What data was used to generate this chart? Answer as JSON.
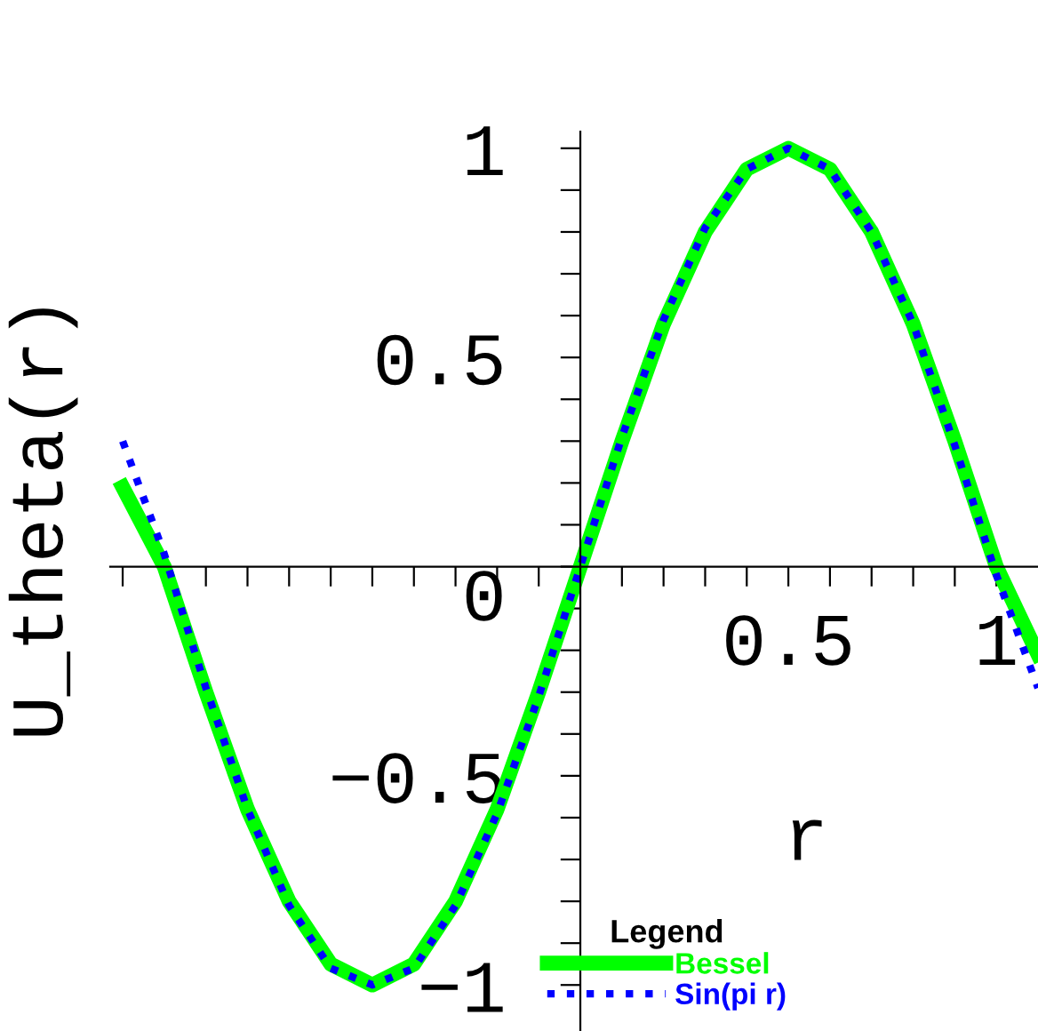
{
  "chart_data": {
    "type": "line",
    "xlabel": "r",
    "ylabel": "U_theta(r)",
    "legend_title": "Legend",
    "legend": "bottom",
    "grid": false,
    "x": [
      -1.1,
      -1.0,
      -0.9,
      -0.8,
      -0.7,
      -0.6,
      -0.5,
      -0.4,
      -0.3,
      -0.2,
      -0.1,
      0,
      0.1,
      0.2,
      0.3,
      0.4,
      0.5,
      0.6,
      0.7,
      0.8,
      0.9,
      1.0,
      1.1
    ],
    "series": [
      {
        "name": "Bessel",
        "color": "#00ff00",
        "line_style": "solid",
        "values": [
          0.19,
          0.0,
          -0.3,
          -0.58,
          -0.8,
          -0.95,
          -1.0,
          -0.95,
          -0.8,
          -0.58,
          -0.3,
          0,
          0.3,
          0.58,
          0.8,
          0.95,
          1.0,
          0.95,
          0.8,
          0.58,
          0.3,
          0.0,
          -0.21
        ]
      },
      {
        "name": "Sin(pi r)",
        "color": "#0000ff",
        "line_style": "dotted",
        "values": [
          0.3,
          0.03,
          -0.29,
          -0.58,
          -0.81,
          -0.96,
          -1.0,
          -0.96,
          -0.81,
          -0.59,
          -0.31,
          0,
          0.31,
          0.59,
          0.81,
          0.95,
          1.0,
          0.95,
          0.8,
          0.58,
          0.29,
          -0.02,
          -0.29
        ]
      }
    ],
    "xlim": [
      -1.13,
      1.1
    ],
    "ylim": [
      -1.11,
      1.04
    ],
    "xticks": [
      {
        "value": -1.1,
        "label": null
      },
      {
        "value": -1.0,
        "label": null
      },
      {
        "value": -0.9,
        "label": null
      },
      {
        "value": -0.8,
        "label": null
      },
      {
        "value": -0.7,
        "label": null
      },
      {
        "value": -0.6,
        "label": null
      },
      {
        "value": -0.5,
        "label": null
      },
      {
        "value": -0.4,
        "label": null
      },
      {
        "value": -0.3,
        "label": null
      },
      {
        "value": -0.2,
        "label": null
      },
      {
        "value": -0.1,
        "label": null
      },
      {
        "value": 0.1,
        "label": null
      },
      {
        "value": 0.2,
        "label": null
      },
      {
        "value": 0.3,
        "label": null
      },
      {
        "value": 0.4,
        "label": null
      },
      {
        "value": 0.5,
        "label": "0.5"
      },
      {
        "value": 0.6,
        "label": null
      },
      {
        "value": 0.7,
        "label": null
      },
      {
        "value": 0.8,
        "label": null
      },
      {
        "value": 0.9,
        "label": null
      },
      {
        "value": 1,
        "label": "1"
      }
    ],
    "yticks": [
      {
        "value": -1,
        "label": "−1"
      },
      {
        "value": -0.9,
        "label": null
      },
      {
        "value": -0.8,
        "label": null
      },
      {
        "value": -0.7,
        "label": null
      },
      {
        "value": -0.6,
        "label": null
      },
      {
        "value": -0.5,
        "label": "−0.5"
      },
      {
        "value": -0.4,
        "label": null
      },
      {
        "value": -0.3,
        "label": null
      },
      {
        "value": -0.2,
        "label": null
      },
      {
        "value": -0.1,
        "label": null
      },
      0,
      {
        "value": 0.1,
        "label": null
      },
      {
        "value": 0.2,
        "label": null
      },
      {
        "value": 0.3,
        "label": null
      },
      {
        "value": 0.4,
        "label": null
      },
      0.5,
      {
        "value": 0.6,
        "label": null
      },
      {
        "value": 0.7,
        "label": null
      },
      {
        "value": 0.8,
        "label": null
      },
      {
        "value": 0.9,
        "label": null
      },
      1
    ]
  }
}
